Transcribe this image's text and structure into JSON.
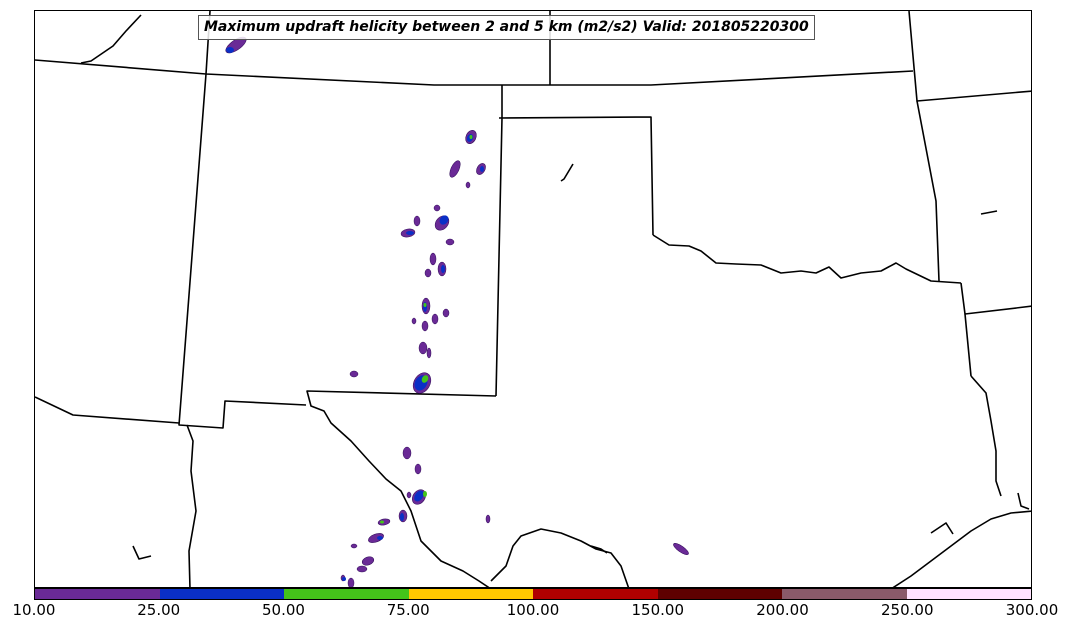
{
  "title": "Maximum updraft helicity between 2 and 5 km (m2/s2) Valid: 201805220300",
  "colorbar": {
    "colors": [
      "#6a2a96",
      "#0a2fc6",
      "#44c41a",
      "#ffc800",
      "#b00000",
      "#5e0000",
      "#8a5a6a",
      "#ffe2ff"
    ],
    "ticks": [
      "10.00",
      "25.00",
      "50.00",
      "75.00",
      "100.00",
      "150.00",
      "200.00",
      "250.00",
      "300.00"
    ]
  },
  "map": {
    "region": "Southern Plains (Texas, Oklahoma, New Mexico)",
    "field": "updraft helicity 2-5 km",
    "units": "m2/s2"
  }
}
